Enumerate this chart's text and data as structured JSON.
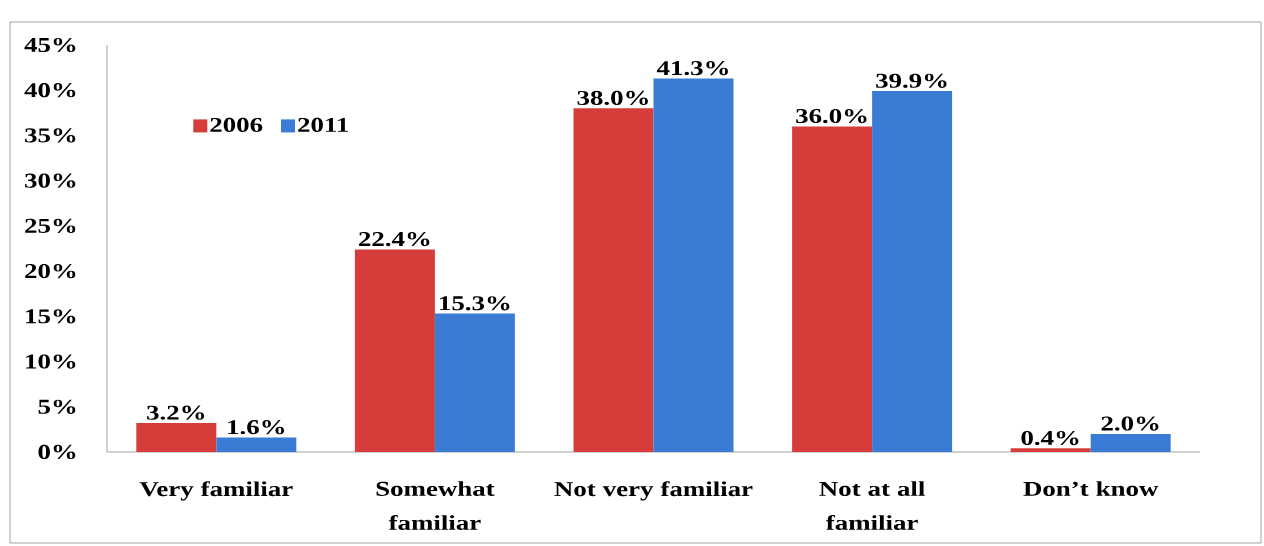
{
  "chart_data": {
    "type": "bar",
    "categories": [
      "Very familiar",
      "Somewhat familiar",
      "Not very familiar",
      "Not at all familiar",
      "Don’t know"
    ],
    "series": [
      {
        "name": "2006",
        "color": "#d63c3a",
        "values": [
          3.2,
          22.4,
          38.0,
          36.0,
          0.4
        ],
        "value_labels": [
          "3.2%",
          "22.4%",
          "38.0%",
          "36.0%",
          "0.4%"
        ]
      },
      {
        "name": "2011",
        "color": "#3a7bd5",
        "values": [
          1.6,
          15.3,
          41.3,
          39.9,
          2.0
        ],
        "value_labels": [
          "1.6%",
          "15.3%",
          "41.3%",
          "39.9%",
          "2.0%"
        ]
      }
    ],
    "ylim": [
      0,
      45
    ],
    "yticks": [
      {
        "value": 0,
        "label": "0%"
      },
      {
        "value": 5,
        "label": "5%"
      },
      {
        "value": 10,
        "label": "10%"
      },
      {
        "value": 15,
        "label": "15%"
      },
      {
        "value": 20,
        "label": "20%"
      },
      {
        "value": 25,
        "label": "25%"
      },
      {
        "value": 30,
        "label": "30%"
      },
      {
        "value": 35,
        "label": "35%"
      },
      {
        "value": 40,
        "label": "40%"
      },
      {
        "value": 45,
        "label": "45%"
      }
    ],
    "legend": "top left",
    "grid": false
  }
}
